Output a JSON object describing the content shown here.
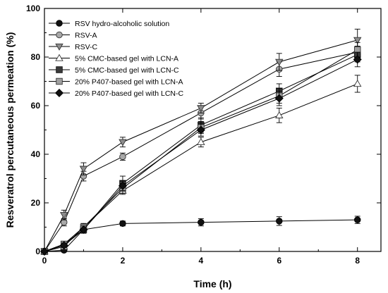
{
  "chart_data": {
    "type": "line",
    "title": "",
    "xlabel": "Time (h)",
    "ylabel": "Resveratrol percutaneous permeation (%)",
    "xlim": [
      0,
      8.6
    ],
    "ylim": [
      0,
      100
    ],
    "xticks": [
      0,
      2,
      4,
      6,
      8
    ],
    "yticks": [
      0,
      20,
      40,
      60,
      80,
      100
    ],
    "grid": false,
    "legend_position": "top-left",
    "series": [
      {
        "name": "RSV hydro-alcoholic solution",
        "marker": "circle",
        "fill": "#111111",
        "stroke": "#000000",
        "x": [
          0,
          0.5,
          1,
          2,
          4,
          6,
          8
        ],
        "y": [
          0,
          0.5,
          9,
          11.5,
          12,
          12.5,
          13
        ],
        "err": [
          0,
          0.3,
          1,
          1,
          1.5,
          1.8,
          1.5
        ]
      },
      {
        "name": "RSV-A",
        "marker": "circle",
        "fill": "#a8a8a8",
        "stroke": "#333333",
        "x": [
          0,
          0.5,
          1,
          2,
          4,
          6,
          8
        ],
        "y": [
          0,
          12,
          31,
          39,
          57,
          75,
          82
        ],
        "err": [
          0,
          1.5,
          2,
          1.5,
          2.5,
          3,
          2.5
        ]
      },
      {
        "name": "RSV-C",
        "marker": "triangle-down",
        "fill": "#8c8c8c",
        "stroke": "#333333",
        "x": [
          0,
          0.5,
          1,
          2,
          4,
          6,
          8
        ],
        "y": [
          0,
          15,
          34,
          45,
          59,
          78,
          87
        ],
        "err": [
          0,
          2,
          2.5,
          2,
          2,
          3.5,
          4.5
        ]
      },
      {
        "name": "5% CMC-based gel with LCN-A",
        "marker": "triangle-up",
        "fill": "#ffffff",
        "stroke": "#333333",
        "x": [
          0,
          0.5,
          1,
          2,
          4,
          6,
          8
        ],
        "y": [
          0,
          2,
          10,
          25,
          45,
          56,
          69
        ],
        "err": [
          0,
          1,
          1.5,
          1.5,
          2,
          3,
          3.5
        ]
      },
      {
        "name": "5% CMC-based gel with LCN-C",
        "marker": "square",
        "fill": "#3a3a3a",
        "stroke": "#111111",
        "x": [
          0,
          0.5,
          1,
          2,
          4,
          6,
          8
        ],
        "y": [
          0,
          3,
          9,
          28,
          52,
          66,
          81
        ],
        "err": [
          0,
          1,
          1.5,
          3,
          3,
          3,
          3
        ]
      },
      {
        "name": "20% P407-based gel with LCN-A",
        "marker": "square",
        "fill": "#a0a0a0",
        "stroke": "#333333",
        "x": [
          0,
          0.5,
          1,
          2,
          4,
          6,
          8
        ],
        "y": [
          0,
          3,
          10,
          26,
          51,
          64,
          83
        ],
        "err": [
          0,
          1,
          1.5,
          2,
          2.5,
          3,
          3
        ]
      },
      {
        "name": "20% P407-based gel with LCN-C",
        "marker": "diamond",
        "fill": "#111111",
        "stroke": "#000000",
        "x": [
          0,
          0.5,
          1,
          2,
          4,
          6,
          8
        ],
        "y": [
          0,
          2.5,
          9,
          27,
          50,
          63,
          79
        ],
        "err": [
          0,
          1,
          1.5,
          2,
          2.5,
          3,
          3
        ]
      }
    ]
  }
}
